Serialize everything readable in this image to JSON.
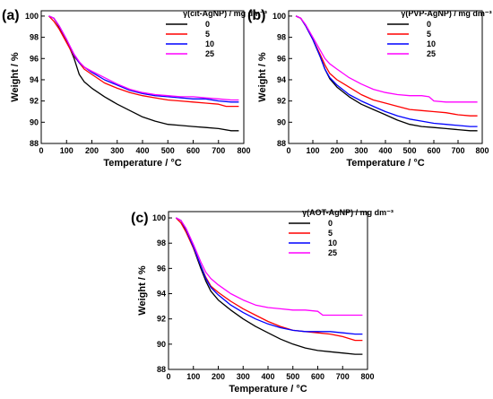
{
  "chart_data": [
    {
      "type": "line",
      "panel_label": "(a)",
      "legend_title": "γ(cit-AgNP) / mg dm⁻³",
      "xlabel": "Temperature / °C",
      "ylabel": "Weight / %",
      "xlim": [
        0,
        800
      ],
      "ylim": [
        88,
        100.5
      ],
      "xticks": [
        "0",
        "100",
        "200",
        "300",
        "400",
        "500",
        "600",
        "700",
        "800"
      ],
      "yticks": [
        "88",
        "90",
        "92",
        "94",
        "96",
        "98",
        "100"
      ],
      "legend_position": "top-right",
      "series": [
        {
          "name": "0",
          "color": "#000000",
          "x": [
            30,
            50,
            70,
            100,
            130,
            150,
            170,
            200,
            250,
            300,
            350,
            400,
            450,
            500,
            550,
            600,
            650,
            700,
            750,
            780
          ],
          "y": [
            100.0,
            99.8,
            99.0,
            97.7,
            96.0,
            94.5,
            93.8,
            93.2,
            92.4,
            91.7,
            91.1,
            90.5,
            90.1,
            89.8,
            89.7,
            89.6,
            89.5,
            89.4,
            89.2,
            89.2
          ]
        },
        {
          "name": "5",
          "color": "#ff0000",
          "x": [
            30,
            50,
            70,
            100,
            130,
            150,
            170,
            200,
            250,
            300,
            350,
            400,
            450,
            500,
            550,
            600,
            650,
            700,
            730,
            780
          ],
          "y": [
            100.0,
            99.5,
            98.8,
            97.5,
            96.2,
            95.6,
            95.0,
            94.5,
            93.7,
            93.2,
            92.8,
            92.5,
            92.3,
            92.1,
            92.0,
            91.9,
            91.8,
            91.7,
            91.5,
            91.5
          ]
        },
        {
          "name": "10",
          "color": "#0000ff",
          "x": [
            30,
            50,
            70,
            100,
            130,
            150,
            170,
            200,
            250,
            300,
            350,
            400,
            450,
            500,
            550,
            600,
            650,
            700,
            750,
            780
          ],
          "y": [
            100.0,
            99.8,
            99.1,
            97.8,
            96.3,
            95.6,
            95.2,
            94.7,
            94.0,
            93.5,
            93.0,
            92.7,
            92.5,
            92.4,
            92.3,
            92.2,
            92.2,
            92.0,
            91.9,
            91.9
          ]
        },
        {
          "name": "25",
          "color": "#ff00ff",
          "x": [
            30,
            50,
            70,
            100,
            130,
            150,
            170,
            200,
            250,
            300,
            350,
            400,
            450,
            500,
            550,
            600,
            650,
            700,
            750,
            780
          ],
          "y": [
            100.0,
            99.8,
            99.1,
            97.8,
            96.4,
            95.7,
            95.2,
            94.8,
            94.2,
            93.6,
            93.1,
            92.8,
            92.6,
            92.5,
            92.4,
            92.4,
            92.3,
            92.2,
            92.1,
            92.1
          ]
        }
      ]
    },
    {
      "type": "line",
      "panel_label": "(b)",
      "legend_title": "γ(PVP-AgNP) / mg dm⁻³",
      "xlabel": "Temperature / °C",
      "ylabel": "Weight / %",
      "xlim": [
        0,
        800
      ],
      "ylim": [
        88,
        100.5
      ],
      "xticks": [
        "0",
        "100",
        "200",
        "300",
        "400",
        "500",
        "600",
        "700",
        "800"
      ],
      "yticks": [
        "88",
        "90",
        "92",
        "94",
        "96",
        "98",
        "100"
      ],
      "legend_position": "top-right",
      "series": [
        {
          "name": "0",
          "color": "#000000",
          "x": [
            30,
            50,
            70,
            100,
            130,
            150,
            170,
            200,
            250,
            300,
            350,
            400,
            450,
            500,
            550,
            600,
            650,
            700,
            750,
            780
          ],
          "y": [
            100.0,
            99.8,
            99.1,
            97.8,
            96.2,
            95.0,
            94.1,
            93.3,
            92.4,
            91.7,
            91.2,
            90.7,
            90.2,
            89.8,
            89.6,
            89.5,
            89.4,
            89.3,
            89.2,
            89.2
          ]
        },
        {
          "name": "5",
          "color": "#ff0000",
          "x": [
            30,
            50,
            70,
            100,
            130,
            150,
            170,
            200,
            250,
            300,
            350,
            400,
            450,
            500,
            550,
            600,
            650,
            700,
            750,
            780
          ],
          "y": [
            100.0,
            99.8,
            99.1,
            97.8,
            96.4,
            95.4,
            94.6,
            94.0,
            93.3,
            92.6,
            92.1,
            91.8,
            91.5,
            91.2,
            91.1,
            91.0,
            90.9,
            90.7,
            90.6,
            90.6
          ]
        },
        {
          "name": "10",
          "color": "#0000ff",
          "x": [
            30,
            50,
            70,
            100,
            130,
            150,
            170,
            200,
            250,
            300,
            350,
            400,
            450,
            500,
            550,
            600,
            650,
            700,
            750,
            780
          ],
          "y": [
            100.0,
            99.8,
            99.1,
            97.8,
            96.2,
            95.0,
            94.2,
            93.5,
            92.6,
            92.0,
            91.5,
            91.0,
            90.6,
            90.3,
            90.1,
            89.9,
            89.8,
            89.7,
            89.6,
            89.6
          ]
        },
        {
          "name": "25",
          "color": "#ff00ff",
          "x": [
            30,
            50,
            70,
            100,
            130,
            150,
            170,
            200,
            250,
            300,
            350,
            400,
            450,
            500,
            550,
            580,
            600,
            650,
            700,
            780
          ],
          "y": [
            100.0,
            99.8,
            99.2,
            98.0,
            96.8,
            96.0,
            95.5,
            95.0,
            94.2,
            93.6,
            93.1,
            92.8,
            92.6,
            92.5,
            92.5,
            92.4,
            92.0,
            91.9,
            91.9,
            91.9
          ]
        }
      ]
    },
    {
      "type": "line",
      "panel_label": "(c)",
      "legend_title": "γ(AOT-AgNP) / mg dm⁻³",
      "xlabel": "Temperature / °C",
      "ylabel": "Weight / %",
      "xlim": [
        0,
        800
      ],
      "ylim": [
        88,
        100.5
      ],
      "xticks": [
        "0",
        "100",
        "200",
        "300",
        "400",
        "500",
        "600",
        "700",
        "800"
      ],
      "yticks": [
        "88",
        "90",
        "92",
        "94",
        "96",
        "98",
        "100"
      ],
      "legend_position": "top-right",
      "series": [
        {
          "name": "0",
          "color": "#000000",
          "x": [
            30,
            50,
            70,
            100,
            130,
            150,
            170,
            200,
            250,
            300,
            350,
            400,
            450,
            500,
            550,
            600,
            650,
            700,
            750,
            780
          ],
          "y": [
            100.0,
            99.8,
            99.0,
            97.6,
            96.0,
            95.0,
            94.2,
            93.5,
            92.7,
            92.0,
            91.4,
            90.9,
            90.4,
            90.0,
            89.7,
            89.5,
            89.4,
            89.3,
            89.2,
            89.2
          ]
        },
        {
          "name": "5",
          "color": "#ff0000",
          "x": [
            30,
            50,
            70,
            100,
            130,
            150,
            170,
            200,
            250,
            300,
            350,
            400,
            450,
            500,
            550,
            600,
            650,
            700,
            750,
            780
          ],
          "y": [
            100.0,
            99.6,
            98.9,
            97.6,
            96.2,
            95.3,
            94.6,
            94.1,
            93.4,
            92.8,
            92.3,
            91.8,
            91.4,
            91.1,
            91.0,
            90.9,
            90.8,
            90.6,
            90.3,
            90.3
          ]
        },
        {
          "name": "10",
          "color": "#0000ff",
          "x": [
            30,
            50,
            70,
            100,
            130,
            150,
            170,
            200,
            250,
            300,
            350,
            400,
            450,
            500,
            550,
            600,
            650,
            700,
            750,
            780
          ],
          "y": [
            100.0,
            99.8,
            99.1,
            97.7,
            96.2,
            95.2,
            94.5,
            93.9,
            93.1,
            92.5,
            92.0,
            91.6,
            91.3,
            91.1,
            91.0,
            91.0,
            91.0,
            90.9,
            90.8,
            90.8
          ]
        },
        {
          "name": "25",
          "color": "#ff00ff",
          "x": [
            30,
            50,
            70,
            100,
            130,
            150,
            170,
            200,
            250,
            300,
            350,
            400,
            450,
            500,
            550,
            600,
            620,
            650,
            700,
            780
          ],
          "y": [
            100.0,
            99.8,
            99.2,
            97.9,
            96.5,
            95.7,
            95.2,
            94.7,
            94.0,
            93.5,
            93.1,
            92.9,
            92.8,
            92.7,
            92.7,
            92.6,
            92.3,
            92.3,
            92.3,
            92.3
          ]
        }
      ]
    }
  ]
}
